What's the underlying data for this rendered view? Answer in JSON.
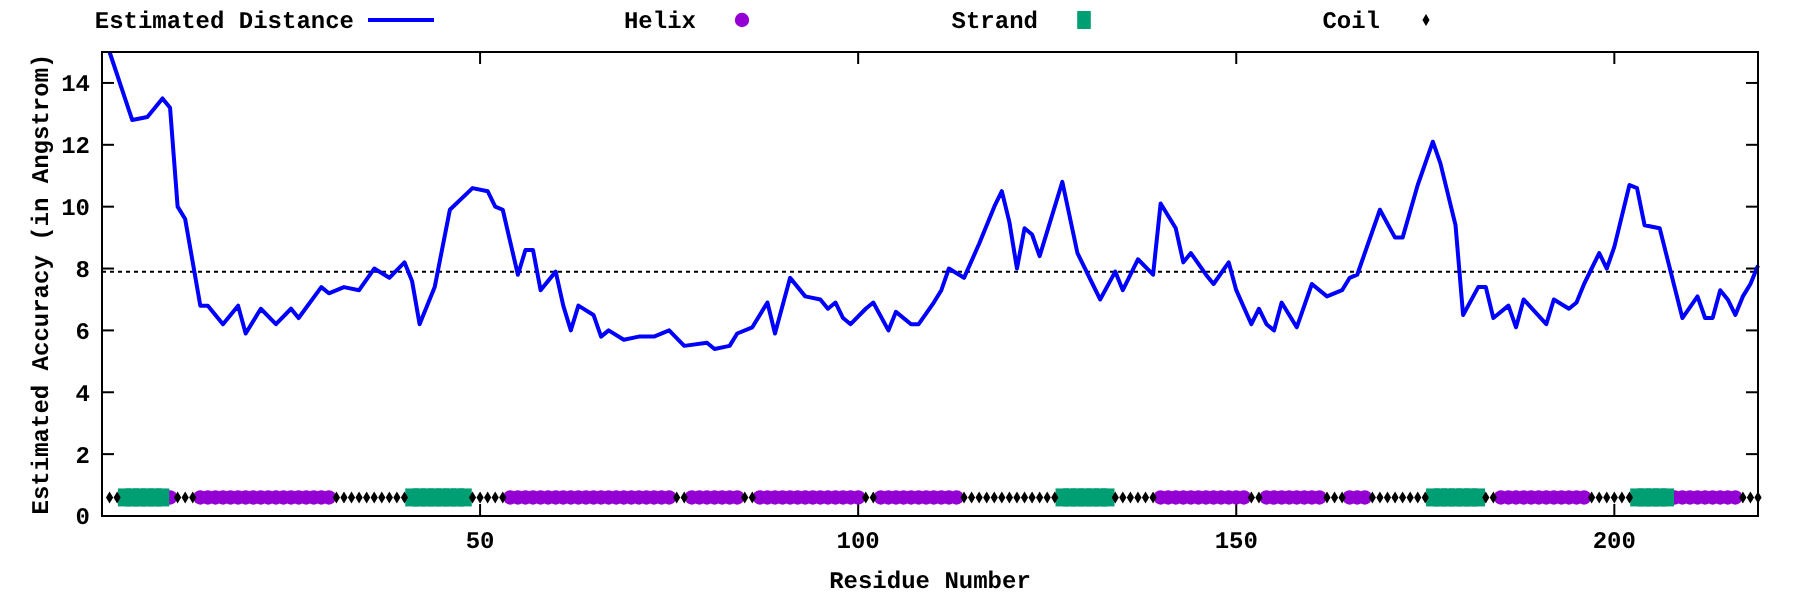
{
  "chart_data": {
    "type": "line",
    "xlabel": "Residue Number",
    "ylabel": "Estimated Accuracy (in Angstrom)",
    "xlim": [
      0,
      219
    ],
    "xticks": [
      50,
      100,
      150,
      200
    ],
    "ylim": [
      0,
      15
    ],
    "yticks": [
      0,
      2,
      4,
      6,
      8,
      10,
      12,
      14
    ],
    "legend": "top",
    "grid": false,
    "ref_lines": [
      {
        "axis": "y",
        "value": 7.9,
        "color": "#000000",
        "line_style": "dotted"
      }
    ],
    "series": [
      {
        "name": "Estimated Distance",
        "type": "line",
        "color": "#0000ff",
        "marker": "none",
        "x": [
          1,
          4,
          6,
          8,
          9,
          10,
          11,
          13,
          14,
          16,
          18,
          19,
          21,
          23,
          25,
          26,
          29,
          30,
          32,
          34,
          36,
          38,
          40,
          41,
          42,
          44,
          46,
          49,
          51,
          52,
          53,
          55,
          56,
          57,
          58,
          60,
          61,
          62,
          63,
          65,
          66,
          67,
          69,
          71,
          73,
          75,
          77,
          80,
          81,
          83,
          84,
          86,
          88,
          89,
          91,
          93,
          95,
          96,
          97,
          98,
          99,
          101,
          102,
          104,
          105,
          107,
          108,
          110,
          111,
          112,
          114,
          116,
          118,
          119,
          120,
          121,
          122,
          123,
          124,
          127,
          129,
          131,
          132,
          134,
          135,
          137,
          139,
          140,
          142,
          143,
          144,
          146,
          147,
          149,
          150,
          152,
          153,
          154,
          155,
          156,
          158,
          160,
          162,
          164,
          165,
          166,
          169,
          171,
          172,
          174,
          176,
          177,
          179,
          180,
          182,
          183,
          184,
          186,
          187,
          188,
          191,
          192,
          194,
          195,
          196,
          198,
          199,
          200,
          202,
          203,
          204,
          206,
          209,
          211,
          212,
          213,
          214,
          215,
          216,
          217,
          218,
          219
        ],
        "values": [
          15.0,
          12.8,
          12.9,
          13.5,
          13.2,
          10.0,
          9.6,
          6.8,
          6.8,
          6.2,
          6.8,
          5.9,
          6.7,
          6.2,
          6.7,
          6.4,
          7.4,
          7.2,
          7.4,
          7.3,
          8.0,
          7.7,
          8.2,
          7.6,
          6.2,
          7.4,
          9.9,
          10.6,
          10.5,
          10.0,
          9.9,
          7.8,
          8.6,
          8.6,
          7.3,
          7.9,
          6.8,
          6.0,
          6.8,
          6.5,
          5.8,
          6.0,
          5.7,
          5.8,
          5.8,
          6.0,
          5.5,
          5.6,
          5.4,
          5.5,
          5.9,
          6.1,
          6.9,
          5.9,
          7.7,
          7.1,
          7.0,
          6.7,
          6.9,
          6.4,
          6.2,
          6.7,
          6.9,
          6.0,
          6.6,
          6.2,
          6.2,
          6.9,
          7.3,
          8.0,
          7.7,
          8.8,
          10.0,
          10.5,
          9.5,
          8.0,
          9.3,
          9.1,
          8.4,
          10.8,
          8.5,
          7.5,
          7.0,
          7.9,
          7.3,
          8.3,
          7.8,
          10.1,
          9.3,
          8.2,
          8.5,
          7.8,
          7.5,
          8.2,
          7.3,
          6.2,
          6.7,
          6.2,
          6.0,
          6.9,
          6.1,
          7.5,
          7.1,
          7.3,
          7.7,
          7.8,
          9.9,
          9.0,
          9.0,
          10.7,
          12.1,
          11.4,
          9.4,
          6.5,
          7.4,
          7.4,
          6.4,
          6.8,
          6.1,
          7.0,
          6.2,
          7.0,
          6.7,
          6.9,
          7.5,
          8.5,
          8.0,
          8.7,
          10.7,
          10.6,
          9.4,
          9.3,
          6.4,
          7.1,
          6.4,
          6.4,
          7.3,
          7.0,
          6.5,
          7.1,
          7.5,
          8.1
        ]
      },
      {
        "name": "Helix",
        "type": "scatter",
        "color": "#9400d3",
        "marker": "circle",
        "x": [
          9,
          13,
          14,
          15,
          16,
          17,
          18,
          19,
          20,
          21,
          22,
          23,
          24,
          25,
          26,
          27,
          28,
          29,
          30,
          54,
          55,
          56,
          57,
          58,
          59,
          60,
          61,
          62,
          63,
          64,
          65,
          66,
          67,
          68,
          69,
          70,
          71,
          72,
          73,
          74,
          75,
          78,
          79,
          80,
          81,
          82,
          83,
          84,
          87,
          88,
          89,
          90,
          91,
          92,
          93,
          94,
          95,
          96,
          97,
          98,
          99,
          100,
          103,
          104,
          105,
          106,
          107,
          108,
          109,
          110,
          111,
          112,
          113,
          140,
          141,
          142,
          143,
          144,
          145,
          146,
          147,
          148,
          149,
          150,
          151,
          154,
          155,
          156,
          157,
          158,
          159,
          160,
          161,
          165,
          166,
          167,
          185,
          186,
          187,
          188,
          189,
          190,
          191,
          192,
          193,
          194,
          195,
          196,
          208,
          209,
          210,
          211,
          212,
          213,
          214,
          215,
          216
        ],
        "values": [
          0.6,
          0.6,
          0.6,
          0.6,
          0.6,
          0.6,
          0.6,
          0.6,
          0.6,
          0.6,
          0.6,
          0.6,
          0.6,
          0.6,
          0.6,
          0.6,
          0.6,
          0.6,
          0.6,
          0.6,
          0.6,
          0.6,
          0.6,
          0.6,
          0.6,
          0.6,
          0.6,
          0.6,
          0.6,
          0.6,
          0.6,
          0.6,
          0.6,
          0.6,
          0.6,
          0.6,
          0.6,
          0.6,
          0.6,
          0.6,
          0.6,
          0.6,
          0.6,
          0.6,
          0.6,
          0.6,
          0.6,
          0.6,
          0.6,
          0.6,
          0.6,
          0.6,
          0.6,
          0.6,
          0.6,
          0.6,
          0.6,
          0.6,
          0.6,
          0.6,
          0.6,
          0.6,
          0.6,
          0.6,
          0.6,
          0.6,
          0.6,
          0.6,
          0.6,
          0.6,
          0.6,
          0.6,
          0.6,
          0.6,
          0.6,
          0.6,
          0.6,
          0.6,
          0.6,
          0.6,
          0.6,
          0.6,
          0.6,
          0.6,
          0.6,
          0.6,
          0.6,
          0.6,
          0.6,
          0.6,
          0.6,
          0.6,
          0.6,
          0.6,
          0.6,
          0.6,
          0.6,
          0.6,
          0.6,
          0.6,
          0.6,
          0.6,
          0.6,
          0.6,
          0.6,
          0.6,
          0.6,
          0.6,
          0.6,
          0.6,
          0.6,
          0.6,
          0.6,
          0.6,
          0.6,
          0.6,
          0.6
        ]
      },
      {
        "name": "Strand",
        "type": "scatter",
        "color": "#009e73",
        "marker": "square",
        "x": [
          3,
          4,
          5,
          6,
          7,
          8,
          41,
          42,
          43,
          44,
          45,
          46,
          47,
          48,
          127,
          128,
          129,
          130,
          131,
          132,
          133,
          176,
          177,
          178,
          179,
          180,
          181,
          182,
          203,
          204,
          205,
          206,
          207
        ],
        "values": [
          0.6,
          0.6,
          0.6,
          0.6,
          0.6,
          0.6,
          0.6,
          0.6,
          0.6,
          0.6,
          0.6,
          0.6,
          0.6,
          0.6,
          0.6,
          0.6,
          0.6,
          0.6,
          0.6,
          0.6,
          0.6,
          0.6,
          0.6,
          0.6,
          0.6,
          0.6,
          0.6,
          0.6,
          0.6,
          0.6,
          0.6,
          0.6,
          0.6
        ]
      },
      {
        "name": "Coil",
        "type": "scatter",
        "color": "#000000",
        "marker": "diamond",
        "x": [
          1,
          2,
          10,
          11,
          12,
          31,
          32,
          33,
          34,
          35,
          36,
          37,
          38,
          39,
          40,
          49,
          50,
          51,
          52,
          53,
          76,
          77,
          85,
          86,
          101,
          102,
          114,
          115,
          116,
          117,
          118,
          119,
          120,
          121,
          122,
          123,
          124,
          125,
          126,
          134,
          135,
          136,
          137,
          138,
          139,
          152,
          153,
          162,
          163,
          164,
          168,
          169,
          170,
          171,
          172,
          173,
          174,
          175,
          183,
          184,
          197,
          198,
          199,
          200,
          201,
          202,
          217,
          218,
          219
        ],
        "values": [
          0.6,
          0.6,
          0.6,
          0.6,
          0.6,
          0.6,
          0.6,
          0.6,
          0.6,
          0.6,
          0.6,
          0.6,
          0.6,
          0.6,
          0.6,
          0.6,
          0.6,
          0.6,
          0.6,
          0.6,
          0.6,
          0.6,
          0.6,
          0.6,
          0.6,
          0.6,
          0.6,
          0.6,
          0.6,
          0.6,
          0.6,
          0.6,
          0.6,
          0.6,
          0.6,
          0.6,
          0.6,
          0.6,
          0.6,
          0.6,
          0.6,
          0.6,
          0.6,
          0.6,
          0.6,
          0.6,
          0.6,
          0.6,
          0.6,
          0.6,
          0.6,
          0.6,
          0.6,
          0.6,
          0.6,
          0.6,
          0.6,
          0.6,
          0.6,
          0.6,
          0.6,
          0.6,
          0.6,
          0.6,
          0.6,
          0.6,
          0.6,
          0.6,
          0.6
        ]
      }
    ]
  }
}
